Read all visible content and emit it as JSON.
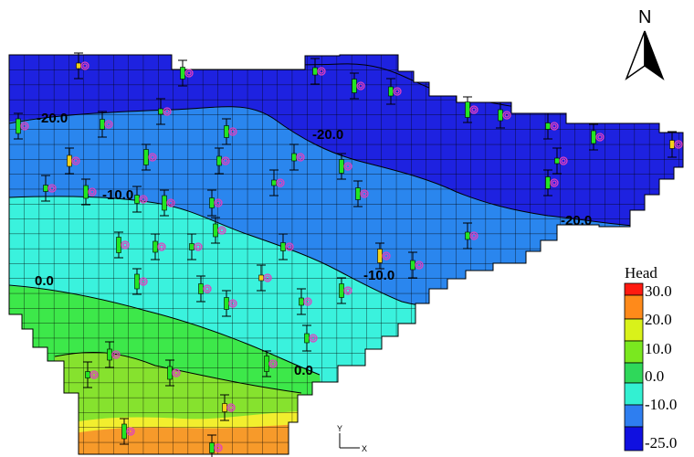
{
  "legend": {
    "title": "Head",
    "entries": [
      {
        "label": "30.0",
        "color": "#ff1a10"
      },
      {
        "label": "20.0",
        "color": "#ff8a1a"
      },
      {
        "label": "10.0",
        "color": "#d9f21a"
      },
      {
        "label": "0.0",
        "color": "#7ae81f"
      },
      {
        "label": "-10.0",
        "color": "#2fd85a"
      },
      {
        "label": "",
        "color": "#33f0d2"
      },
      {
        "label": "-25.0",
        "color": "#2e7ef0"
      },
      {
        "extra_color": "#1a3ce6"
      }
    ],
    "bottom_color": "#1010e0"
  },
  "contour_labels": [
    "-20.0",
    "-10.0",
    "0.0",
    "-20.0",
    "-10.0",
    "0.0",
    "-20.0"
  ],
  "north_arrow": {
    "label": "N"
  },
  "axis_triad": {
    "y_label": "Y",
    "x_label": "X"
  },
  "zone_colors": {
    "deep_blue": "#1e22e0",
    "mid_blue": "#2a86ee",
    "cyan": "#3af2dd",
    "light_green": "#3de84a",
    "green": "#86e22e",
    "yellow": "#f2ee2e",
    "orange": "#f79a2a",
    "grid_line": "#000000"
  },
  "icons": [
    "north-arrow-icon",
    "well-marker-icon",
    "observation-target-icon",
    "axis-triad-icon"
  ]
}
